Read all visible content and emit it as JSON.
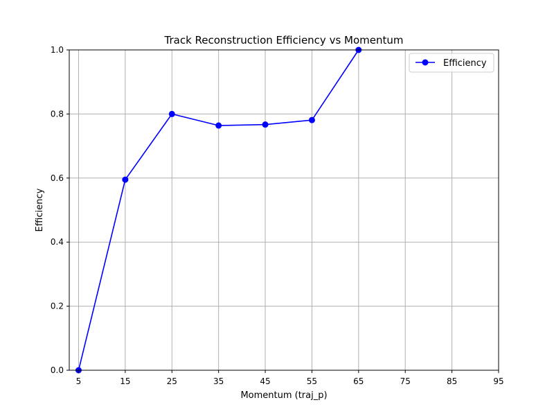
{
  "chart_data": {
    "type": "line",
    "title": "Track Reconstruction Efficiency vs Momentum",
    "xlabel": "Momentum (traj_p)",
    "ylabel": "Efficiency",
    "xlim": [
      3,
      95
    ],
    "ylim": [
      0,
      1.0
    ],
    "x_ticks": [
      5,
      15,
      25,
      35,
      45,
      55,
      65,
      75,
      85,
      95
    ],
    "y_ticks": [
      0.0,
      0.2,
      0.4,
      0.6,
      0.8,
      1.0
    ],
    "x_tick_labels": [
      "5",
      "15",
      "25",
      "35",
      "45",
      "55",
      "65",
      "75",
      "85",
      "95"
    ],
    "y_tick_labels": [
      "0.0",
      "0.2",
      "0.4",
      "0.6",
      "0.8",
      "1.0"
    ],
    "grid": true,
    "legend_position": "top-right",
    "series": [
      {
        "name": "Efficiency",
        "color": "#0000ff",
        "marker": "circle",
        "x": [
          5,
          15,
          25,
          35,
          45,
          55,
          65
        ],
        "y": [
          0.0,
          0.595,
          0.8,
          0.764,
          0.767,
          0.781,
          1.0
        ]
      }
    ]
  }
}
